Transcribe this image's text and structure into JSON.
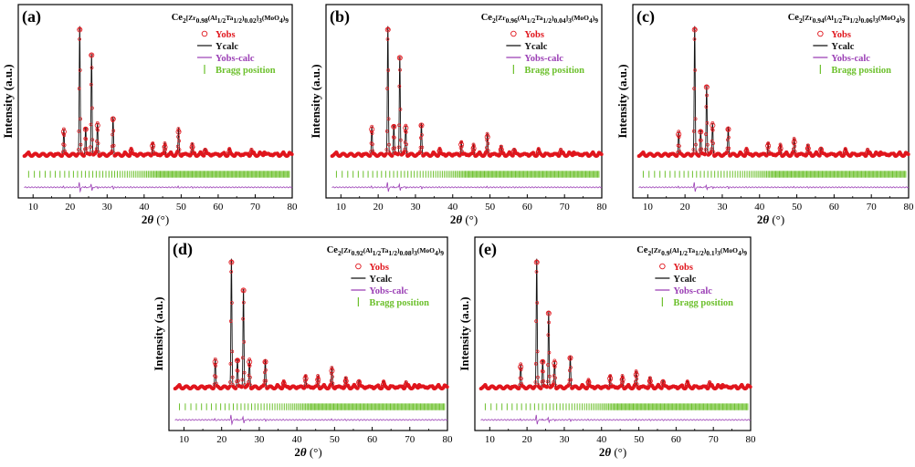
{
  "colors": {
    "yobs": "#e0161d",
    "ycalc": "#111111",
    "diff": "#9b3fb5",
    "bragg": "#6cc02c",
    "axis": "#000000"
  },
  "legend": {
    "yobs": "Yobs",
    "ycalc": "Ycalc",
    "diff": "Yobs-calc",
    "bragg": "Bragg position"
  },
  "axes": {
    "xlabel_theta": "θ",
    "xlabel_prefix": "2",
    "xlabel_unit": " (°)",
    "ylabel": "Intensity  (a.u.)",
    "xlim": [
      6,
      80
    ],
    "xticks": [
      10,
      20,
      30,
      40,
      50,
      60,
      70,
      80
    ],
    "xtick_labels": [
      "10",
      "20",
      "30",
      "40",
      "50",
      "60",
      "70",
      "80"
    ]
  },
  "chart_data": [
    {
      "type": "line",
      "panel": "(a)",
      "formula": {
        "x": "0.98",
        "y": "0.02"
      },
      "peaks": [
        {
          "x": 18.3,
          "y": 0.2
        },
        {
          "x": 22.6,
          "y": 1.0
        },
        {
          "x": 24.2,
          "y": 0.22
        },
        {
          "x": 25.8,
          "y": 0.8
        },
        {
          "x": 27.4,
          "y": 0.25
        },
        {
          "x": 31.6,
          "y": 0.3
        },
        {
          "x": 36.5,
          "y": 0.05
        },
        {
          "x": 42.3,
          "y": 0.09
        },
        {
          "x": 45.6,
          "y": 0.08
        },
        {
          "x": 49.3,
          "y": 0.2
        },
        {
          "x": 53.0,
          "y": 0.08
        },
        {
          "x": 56.5,
          "y": 0.05
        },
        {
          "x": 63.0,
          "y": 0.04
        },
        {
          "x": 69.0,
          "y": 0.04
        },
        {
          "x": 72.5,
          "y": 0.03
        }
      ]
    },
    {
      "type": "line",
      "panel": "(b)",
      "formula": {
        "x": "0.96",
        "y": "0.04"
      },
      "peaks": [
        {
          "x": 18.3,
          "y": 0.22
        },
        {
          "x": 22.6,
          "y": 1.0
        },
        {
          "x": 24.2,
          "y": 0.24
        },
        {
          "x": 25.8,
          "y": 0.78
        },
        {
          "x": 27.4,
          "y": 0.23
        },
        {
          "x": 31.6,
          "y": 0.25
        },
        {
          "x": 36.5,
          "y": 0.05
        },
        {
          "x": 42.3,
          "y": 0.1
        },
        {
          "x": 45.6,
          "y": 0.07
        },
        {
          "x": 49.3,
          "y": 0.16
        },
        {
          "x": 53.0,
          "y": 0.06
        },
        {
          "x": 56.5,
          "y": 0.05
        },
        {
          "x": 63.0,
          "y": 0.04
        },
        {
          "x": 69.0,
          "y": 0.04
        },
        {
          "x": 72.5,
          "y": 0.03
        }
      ]
    },
    {
      "type": "line",
      "panel": "(c)",
      "formula": {
        "x": "0.94",
        "y": "0.06"
      },
      "peaks": [
        {
          "x": 18.3,
          "y": 0.18
        },
        {
          "x": 22.6,
          "y": 1.0
        },
        {
          "x": 24.2,
          "y": 0.2
        },
        {
          "x": 25.8,
          "y": 0.55
        },
        {
          "x": 27.4,
          "y": 0.25
        },
        {
          "x": 31.6,
          "y": 0.22
        },
        {
          "x": 36.5,
          "y": 0.05
        },
        {
          "x": 42.3,
          "y": 0.09
        },
        {
          "x": 45.6,
          "y": 0.07
        },
        {
          "x": 49.3,
          "y": 0.12
        },
        {
          "x": 53.0,
          "y": 0.07
        },
        {
          "x": 56.5,
          "y": 0.06
        },
        {
          "x": 63.0,
          "y": 0.04
        },
        {
          "x": 69.0,
          "y": 0.04
        },
        {
          "x": 72.5,
          "y": 0.03
        }
      ]
    },
    {
      "type": "line",
      "panel": "(d)",
      "formula": {
        "x": "0.92",
        "y": "0.08"
      },
      "peaks": [
        {
          "x": 18.3,
          "y": 0.22
        },
        {
          "x": 22.6,
          "y": 1.0
        },
        {
          "x": 24.2,
          "y": 0.23
        },
        {
          "x": 25.8,
          "y": 0.78
        },
        {
          "x": 27.4,
          "y": 0.22
        },
        {
          "x": 31.6,
          "y": 0.22
        },
        {
          "x": 36.5,
          "y": 0.05
        },
        {
          "x": 42.3,
          "y": 0.09
        },
        {
          "x": 45.6,
          "y": 0.08
        },
        {
          "x": 49.3,
          "y": 0.15
        },
        {
          "x": 53.0,
          "y": 0.07
        },
        {
          "x": 56.5,
          "y": 0.06
        },
        {
          "x": 63.0,
          "y": 0.04
        },
        {
          "x": 69.0,
          "y": 0.04
        },
        {
          "x": 72.5,
          "y": 0.03
        }
      ]
    },
    {
      "type": "line",
      "panel": "(e)",
      "formula": {
        "x": "0.9",
        "y": "0.1"
      },
      "peaks": [
        {
          "x": 18.3,
          "y": 0.18
        },
        {
          "x": 22.6,
          "y": 1.0
        },
        {
          "x": 24.2,
          "y": 0.22
        },
        {
          "x": 25.8,
          "y": 0.6
        },
        {
          "x": 27.4,
          "y": 0.21
        },
        {
          "x": 31.6,
          "y": 0.25
        },
        {
          "x": 36.5,
          "y": 0.06
        },
        {
          "x": 42.3,
          "y": 0.09
        },
        {
          "x": 45.6,
          "y": 0.08
        },
        {
          "x": 49.3,
          "y": 0.12
        },
        {
          "x": 53.0,
          "y": 0.07
        },
        {
          "x": 56.5,
          "y": 0.06
        },
        {
          "x": 63.0,
          "y": 0.04
        },
        {
          "x": 69.0,
          "y": 0.04
        },
        {
          "x": 72.5,
          "y": 0.03
        }
      ]
    }
  ]
}
